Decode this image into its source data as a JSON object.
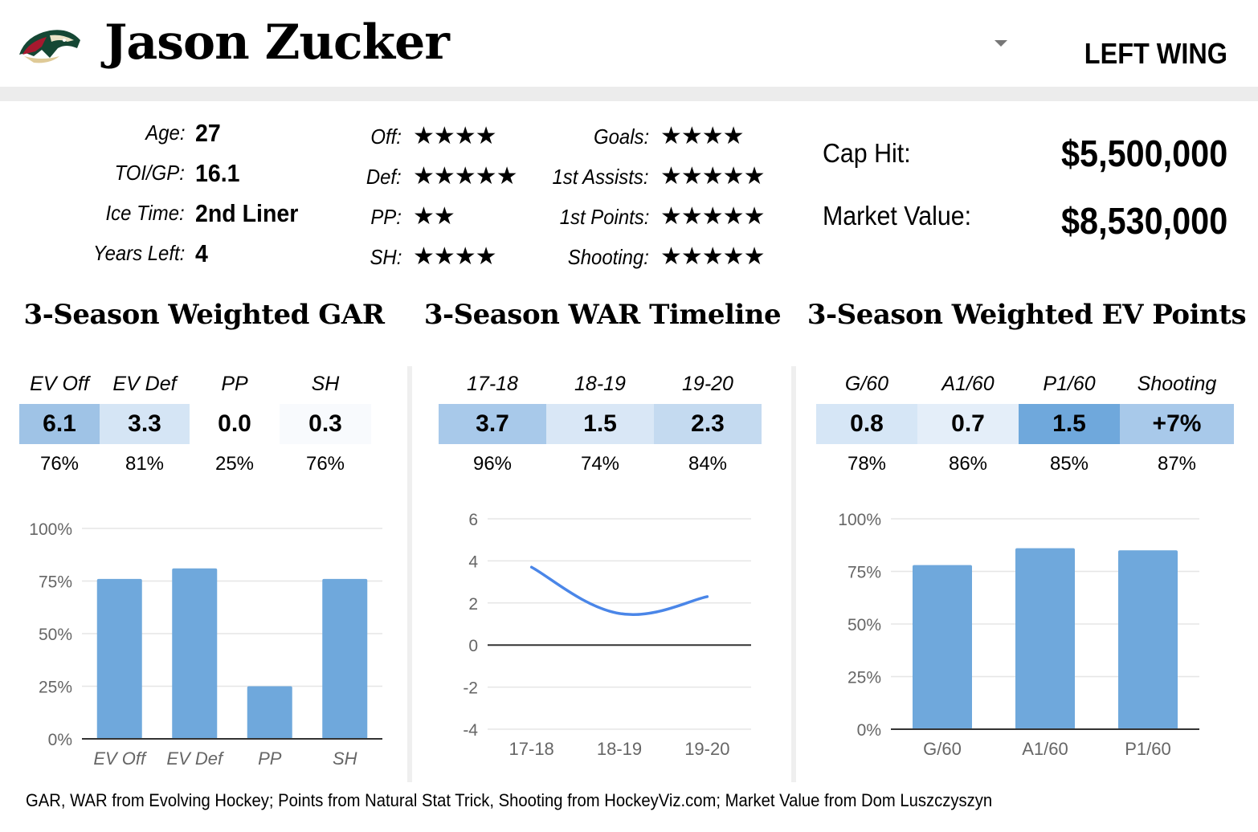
{
  "header": {
    "player_name": "Jason Zucker",
    "position": "LEFT WING",
    "team_logo_icon": "minnesota-wild-logo-icon",
    "dropdown_icon": "chevron-down-icon"
  },
  "player_info": [
    {
      "label": "Age:",
      "value": "27"
    },
    {
      "label": "TOI/GP:",
      "value": "16.1"
    },
    {
      "label": "Ice Time:",
      "value": "2nd Liner"
    },
    {
      "label": "Years Left:",
      "value": "4"
    }
  ],
  "ratings_left": [
    {
      "label": "Off:",
      "stars": "★★★★",
      "count": 4
    },
    {
      "label": "Def:",
      "stars": "★★★★★",
      "count": 5
    },
    {
      "label": "PP:",
      "stars": "★★",
      "count": 2
    },
    {
      "label": "SH:",
      "stars": "★★★★",
      "count": 4
    }
  ],
  "ratings_right": [
    {
      "label": "Goals:",
      "stars": "★★★★",
      "count": 4
    },
    {
      "label": "1st Assists:",
      "stars": "★★★★★",
      "count": 5
    },
    {
      "label": "1st Points:",
      "stars": "★★★★★",
      "count": 5
    },
    {
      "label": "Shooting:",
      "stars": "★★★★★",
      "count": 5
    }
  ],
  "contract": {
    "cap_hit_label": "Cap Hit:",
    "cap_hit_value": "$5,500,000",
    "market_value_label": "Market Value:",
    "market_value_value": "$8,530,000"
  },
  "sections": {
    "gar": {
      "title": "3-Season Weighted GAR",
      "columns": [
        "EV Off",
        "EV Def",
        "PP",
        "SH"
      ],
      "values": [
        "6.1",
        "3.3",
        "0.0",
        "0.3"
      ],
      "percentiles": [
        "76%",
        "81%",
        "25%",
        "76%"
      ],
      "cell_colors": [
        "#9fc3e6",
        "#d5e5f5",
        "#ffffff",
        "#f8fafd"
      ]
    },
    "war": {
      "title": "3-Season WAR Timeline",
      "columns": [
        "17-18",
        "18-19",
        "19-20"
      ],
      "values": [
        "3.7",
        "1.5",
        "2.3"
      ],
      "percentiles": [
        "96%",
        "74%",
        "84%"
      ],
      "cell_colors": [
        "#a8c9ea",
        "#d9e7f6",
        "#c4daf0"
      ]
    },
    "ev_points": {
      "title": "3-Season Weighted EV Points",
      "columns": [
        "G/60",
        "A1/60",
        "P1/60",
        "Shooting"
      ],
      "values": [
        "0.8",
        "0.7",
        "1.5",
        "+7%"
      ],
      "percentiles": [
        "78%",
        "86%",
        "85%",
        "87%"
      ],
      "cell_colors": [
        "#d6e6f6",
        "#e4eef9",
        "#6fa8dc",
        "#a8c9ea"
      ]
    }
  },
  "colors": {
    "bar": "#6fa8dc",
    "line": "#4a86e8",
    "grid": "#e6e6e6",
    "axis_text": "#666666"
  },
  "chart_data": [
    {
      "type": "bar",
      "title": "3-Season Weighted GAR",
      "categories": [
        "EV Off",
        "EV Def",
        "PP",
        "SH"
      ],
      "values": [
        76,
        81,
        25,
        76
      ],
      "ylim": [
        0,
        100
      ],
      "yticks": [
        "0%",
        "25%",
        "50%",
        "75%",
        "100%"
      ],
      "ytick_values": [
        0,
        25,
        50,
        75,
        100
      ],
      "xlabel": "",
      "ylabel": "",
      "grid": true
    },
    {
      "type": "line",
      "title": "3-Season WAR Timeline",
      "categories": [
        "17-18",
        "18-19",
        "19-20"
      ],
      "values": [
        3.7,
        1.5,
        2.3
      ],
      "ylim": [
        -4,
        6
      ],
      "yticks": [
        "-4",
        "-2",
        "0",
        "2",
        "4",
        "6"
      ],
      "ytick_values": [
        -4,
        -2,
        0,
        2,
        4,
        6
      ],
      "xlabel": "",
      "ylabel": "",
      "grid": true
    },
    {
      "type": "bar",
      "title": "3-Season Weighted EV Points",
      "categories": [
        "G/60",
        "A1/60",
        "P1/60"
      ],
      "values": [
        78,
        86,
        85
      ],
      "ylim": [
        0,
        100
      ],
      "yticks": [
        "0%",
        "25%",
        "50%",
        "75%",
        "100%"
      ],
      "ytick_values": [
        0,
        25,
        50,
        75,
        100
      ],
      "xlabel": "",
      "ylabel": "",
      "grid": true
    }
  ],
  "footer": {
    "sources": "GAR, WAR from Evolving Hockey; Points from Natural Stat Trick, Shooting from HockeyViz.com; Market Value from Dom Luszczyszyn"
  }
}
